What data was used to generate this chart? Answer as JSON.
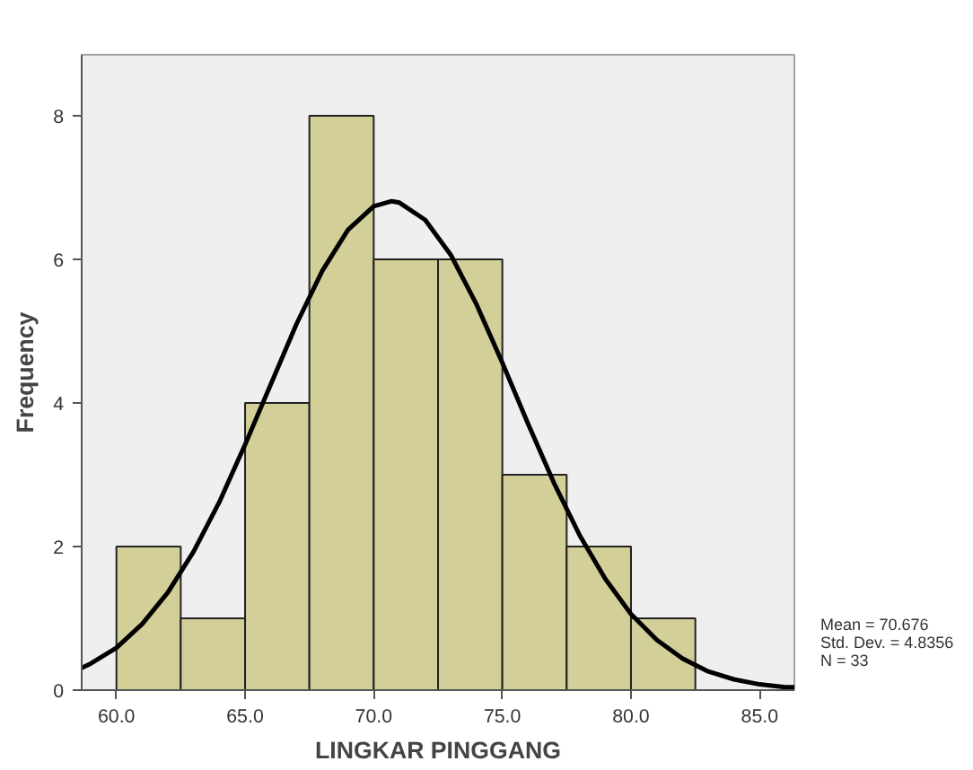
{
  "chart_data": {
    "type": "histogram",
    "xlabel": "LINGKAR PINGGANG",
    "ylabel": "Frequency",
    "bins": [
      60,
      62.5,
      65,
      67.5,
      70,
      72.5,
      75,
      77.5,
      80,
      82.5
    ],
    "series": [
      {
        "color": "#d3cf98",
        "values": [
          2,
          1,
          4,
          8,
          6,
          6,
          3,
          2,
          1
        ]
      },
      {
        "type": "line",
        "color": "#000000",
        "x": [
          58.65,
          59,
          60,
          61,
          62,
          63,
          64,
          65,
          66,
          67,
          68,
          69,
          70,
          70.7,
          71,
          72,
          73,
          74,
          75,
          76,
          77,
          78,
          79,
          80,
          81,
          82,
          83,
          84,
          85,
          86,
          86.35
        ],
        "values": [
          0.31,
          0.37,
          0.59,
          0.92,
          1.36,
          1.93,
          2.62,
          3.42,
          4.26,
          5.1,
          5.84,
          6.41,
          6.74,
          6.81,
          6.79,
          6.55,
          6.06,
          5.37,
          4.56,
          3.71,
          2.89,
          2.16,
          1.55,
          1.06,
          0.7,
          0.44,
          0.26,
          0.15,
          0.08,
          0.04,
          0.04
        ]
      }
    ],
    "xlim": [
      58.65,
      86.35
    ],
    "ylim": [
      0,
      8.85
    ],
    "xticks": [
      {
        "value": 60,
        "label": "60.0"
      },
      {
        "value": 65,
        "label": "65.0"
      },
      {
        "value": 70,
        "label": "70.0"
      },
      {
        "value": 75,
        "label": "75.0"
      },
      {
        "value": 80,
        "label": "80.0"
      },
      {
        "value": 85,
        "label": "85.0"
      }
    ],
    "yticks": [
      0,
      2,
      4,
      6,
      8
    ],
    "grid": false,
    "annotations": [
      "Mean = 70.676",
      "Std. Dev. = 4.8356",
      "N = 33"
    ]
  }
}
